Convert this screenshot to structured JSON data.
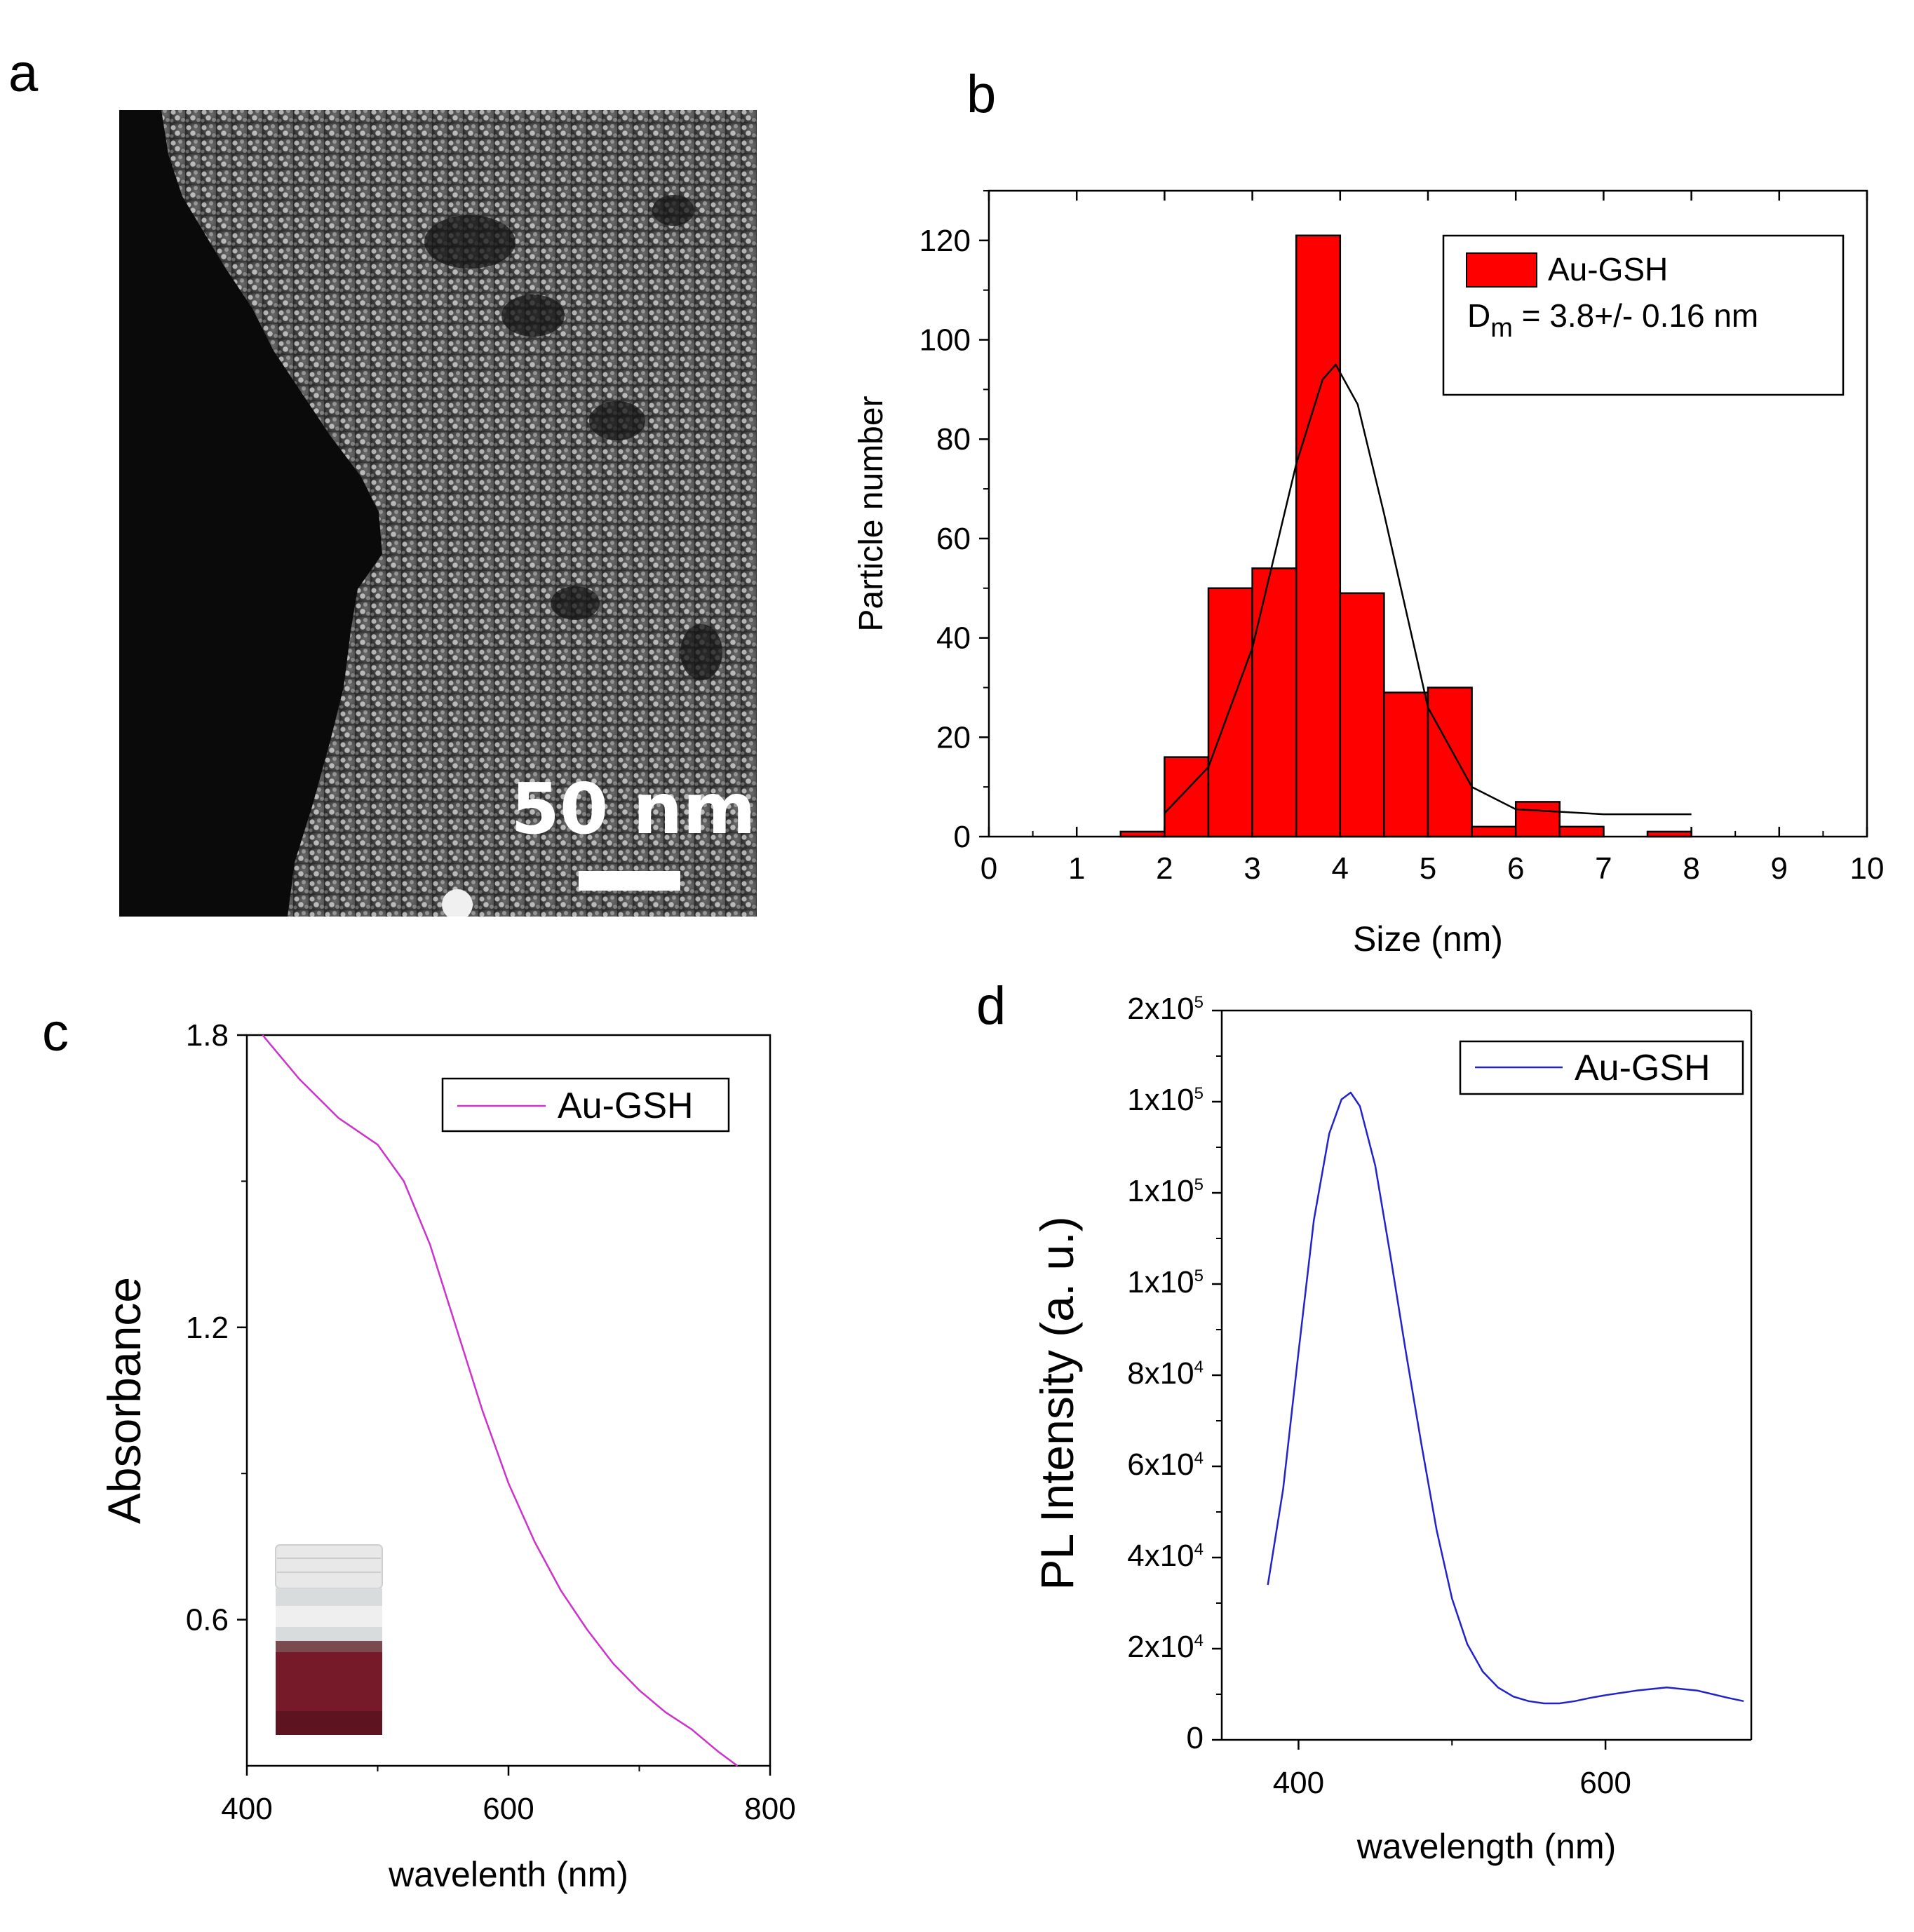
{
  "panels": {
    "a": {
      "letter": "a",
      "scale_bar_label": "50 nm"
    },
    "b": {
      "letter": "b",
      "legend_series": "Au-GSH",
      "legend_note_prefix": "D",
      "legend_note_subscript": "m",
      "legend_note_rest": " = 3.8+/- 0.16 nm"
    },
    "c": {
      "letter": "c",
      "legend_series": "Au-GSH"
    },
    "d": {
      "letter": "d",
      "legend_series": "Au-GSH"
    }
  },
  "colors": {
    "bar_fill": "#ff0000",
    "fit_line": "#000000",
    "absorbance_line": "#cc33cc",
    "pl_line": "#2222cc",
    "tem_background": "#0a0a0a"
  },
  "chart_data": [
    {
      "panel": "b",
      "type": "bar",
      "xlabel": "Size (nm)",
      "ylabel": "Particle number",
      "xlim": [
        0,
        10
      ],
      "ylim": [
        0,
        130
      ],
      "xticks": [
        0,
        1,
        2,
        3,
        4,
        5,
        6,
        7,
        8,
        9,
        10
      ],
      "yticks": [
        0,
        20,
        40,
        60,
        80,
        100,
        120
      ],
      "bin_width": 0.5,
      "bin_starts": [
        1.5,
        2.0,
        2.5,
        3.0,
        3.5,
        4.0,
        4.5,
        5.0,
        5.5,
        6.0,
        6.5,
        7.0,
        7.5
      ],
      "values": [
        1,
        16,
        50,
        54,
        121,
        49,
        29,
        30,
        2,
        7,
        2,
        0,
        1
      ],
      "series": [
        {
          "name": "Au-GSH",
          "values": [
            1,
            16,
            50,
            54,
            121,
            49,
            29,
            30,
            2,
            7,
            2,
            0,
            1
          ]
        }
      ],
      "fit_curve": {
        "x": [
          2.0,
          2.5,
          3.0,
          3.5,
          3.8,
          3.95,
          4.2,
          4.5,
          5.0,
          5.5,
          6.0,
          7.0,
          8.0
        ],
        "y": [
          4.7,
          14,
          38,
          75,
          92,
          95,
          87,
          65,
          26,
          10,
          5.5,
          4.5,
          4.5
        ]
      },
      "legend": "top-right",
      "grid": false
    },
    {
      "panel": "c",
      "type": "line",
      "xlabel": "wavelenth (nm)",
      "ylabel": "Absorbance",
      "xlim": [
        400,
        800
      ],
      "ylim": [
        0.3,
        1.8
      ],
      "xticks": [
        400,
        600,
        800
      ],
      "yticks": [
        0.6,
        1.2,
        1.8
      ],
      "series": [
        {
          "name": "Au-GSH",
          "x": [
            412,
            440,
            470,
            500,
            520,
            540,
            560,
            580,
            600,
            620,
            640,
            660,
            680,
            700,
            720,
            740,
            760,
            775
          ],
          "y": [
            1.8,
            1.71,
            1.63,
            1.575,
            1.5,
            1.37,
            1.2,
            1.03,
            0.88,
            0.76,
            0.66,
            0.58,
            0.51,
            0.455,
            0.41,
            0.375,
            0.33,
            0.3
          ]
        }
      ],
      "legend": "top-right",
      "grid": false
    },
    {
      "panel": "d",
      "type": "line",
      "xlabel": "wavelength (nm)",
      "ylabel": "PL Intensity (a. u.)",
      "xlim": [
        350,
        695
      ],
      "ylim": [
        0,
        160000
      ],
      "xticks": [
        400,
        600
      ],
      "ytick_values": [
        0,
        20000,
        40000,
        60000,
        80000,
        100000,
        120000,
        140000,
        160000
      ],
      "ytick_labels": [
        {
          "mantissa": "0",
          "exponent": ""
        },
        {
          "mantissa": "2x10",
          "exponent": "4"
        },
        {
          "mantissa": "4x10",
          "exponent": "4"
        },
        {
          "mantissa": "6x10",
          "exponent": "4"
        },
        {
          "mantissa": "8x10",
          "exponent": "4"
        },
        {
          "mantissa": "1x10",
          "exponent": "5"
        },
        {
          "mantissa": "1x10",
          "exponent": "5"
        },
        {
          "mantissa": "1x10",
          "exponent": "5"
        },
        {
          "mantissa": "2x10",
          "exponent": "5"
        }
      ],
      "series": [
        {
          "name": "Au-GSH",
          "x": [
            380,
            390,
            400,
            410,
            420,
            428,
            434,
            440,
            450,
            460,
            470,
            480,
            490,
            500,
            510,
            520,
            530,
            540,
            550,
            560,
            570,
            580,
            590,
            600,
            620,
            640,
            660,
            680,
            690
          ],
          "y": [
            34000,
            55000,
            85000,
            114000,
            133000,
            140500,
            142000,
            139000,
            126000,
            106000,
            85000,
            65000,
            46000,
            31000,
            21000,
            15000,
            11500,
            9500,
            8500,
            8000,
            8000,
            8500,
            9200,
            9800,
            10800,
            11500,
            10800,
            9200,
            8500
          ]
        }
      ],
      "legend": "top-right",
      "grid": false
    }
  ]
}
